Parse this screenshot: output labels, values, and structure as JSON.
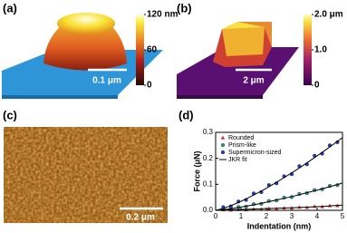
{
  "panels": [
    {
      "label": "(a)",
      "scale_bar": "0.1 μm",
      "colorbar": {
        "clim": [
          0,
          120
        ],
        "ticks": [
          {
            "value": 120,
            "label": "120 nm"
          },
          60,
          0
        ]
      }
    },
    {
      "label": "(b)",
      "scale_bar": "2 μm",
      "colorbar": {
        "clim": [
          0,
          2
        ],
        "ticks": [
          {
            "value": 2,
            "label": "2.0 μm"
          },
          {
            "value": 1,
            "label": "1.0"
          },
          0
        ]
      }
    },
    {
      "label": "(c)",
      "scale_bar": "0.2 μm"
    },
    {
      "label": "(d)"
    }
  ],
  "chart_data": {
    "type": "scatter",
    "x_label": "Indentation (nm)",
    "y_label": "Force (μN)",
    "xlim": [
      0,
      5
    ],
    "ylim": [
      0,
      0.3
    ],
    "xticks": [
      0,
      1,
      2,
      3,
      4,
      5
    ],
    "yticks": [
      {
        "value": 0,
        "label": "0.0"
      },
      {
        "value": 0.1,
        "label": "0.1"
      },
      {
        "value": 0.2,
        "label": "0.2"
      },
      {
        "value": 0.3,
        "label": "0.3"
      }
    ],
    "legend": "upper-left",
    "series": [
      {
        "name": "Rounded",
        "color": "#d62728",
        "marker": "triangle",
        "x": [
          0.3,
          0.6,
          0.9,
          1.2,
          1.5,
          1.8,
          2.1,
          2.4,
          2.7,
          3.0,
          3.3,
          3.6,
          3.9,
          4.2,
          4.5,
          4.8
        ],
        "values": [
          0.002,
          0.001,
          0.003,
          0.002,
          0.005,
          0.004,
          0.007,
          0.006,
          0.009,
          0.009,
          0.012,
          0.011,
          0.015,
          0.014,
          0.018,
          0.018
        ]
      },
      {
        "name": "Prism-like",
        "color": "#2a9d8f",
        "marker": "circle",
        "x": [
          0.3,
          0.6,
          0.9,
          1.2,
          1.5,
          1.8,
          2.1,
          2.4,
          2.7,
          3.0,
          3.3,
          3.6,
          3.9,
          4.2,
          4.5,
          4.8
        ],
        "values": [
          0.004,
          0.005,
          0.013,
          0.014,
          0.024,
          0.025,
          0.036,
          0.038,
          0.049,
          0.051,
          0.063,
          0.066,
          0.078,
          0.081,
          0.094,
          0.097
        ]
      },
      {
        "name": "Supermicron-sized",
        "color": "#1f3fbf",
        "marker": "circle",
        "x": [
          0.3,
          0.6,
          0.9,
          1.2,
          1.5,
          1.8,
          2.1,
          2.4,
          2.7,
          3.0,
          3.3,
          3.6,
          3.9,
          4.2,
          4.5,
          4.8
        ],
        "values": [
          0.012,
          0.015,
          0.034,
          0.04,
          0.065,
          0.07,
          0.097,
          0.104,
          0.131,
          0.139,
          0.17,
          0.177,
          0.21,
          0.218,
          0.25,
          0.262
        ]
      }
    ],
    "fit": {
      "name": "JKR fit",
      "color": "#000000",
      "x": [
        0,
        0.3,
        0.6,
        0.9,
        1.2,
        1.5,
        1.8,
        2.1,
        2.4,
        2.7,
        3.0,
        3.3,
        3.6,
        3.9,
        4.2,
        4.5,
        4.8,
        5
      ],
      "curves": [
        [
          0,
          0.001,
          0.002,
          0.003,
          0.004,
          0.005,
          0.006,
          0.007,
          0.008,
          0.009,
          0.01,
          0.011,
          0.012,
          0.014,
          0.015,
          0.017,
          0.019,
          0.02
        ],
        [
          0,
          0.002,
          0.006,
          0.011,
          0.016,
          0.021,
          0.027,
          0.033,
          0.04,
          0.046,
          0.053,
          0.06,
          0.068,
          0.075,
          0.083,
          0.091,
          0.099,
          0.105
        ],
        [
          0,
          0.007,
          0.018,
          0.03,
          0.044,
          0.059,
          0.074,
          0.091,
          0.108,
          0.126,
          0.144,
          0.163,
          0.183,
          0.203,
          0.223,
          0.244,
          0.265,
          0.28
        ]
      ]
    }
  }
}
